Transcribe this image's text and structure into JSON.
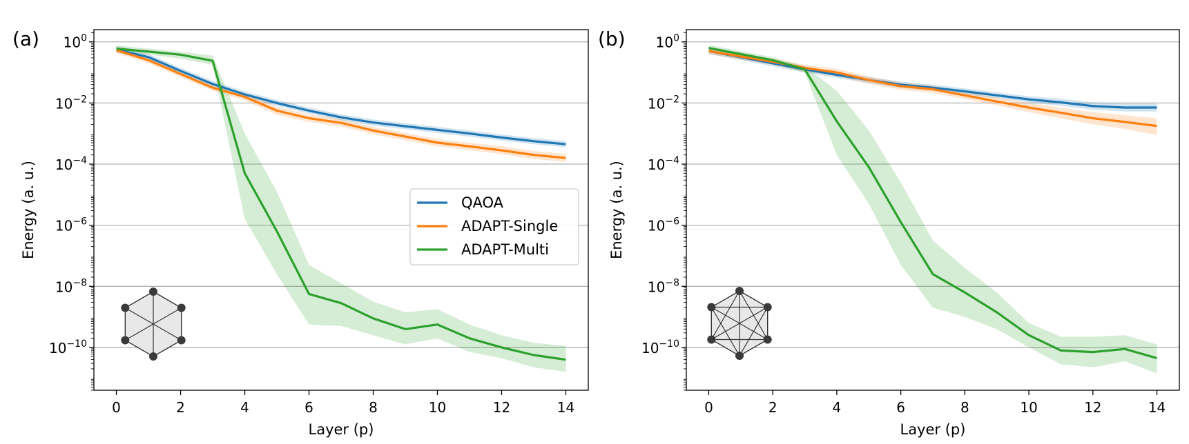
{
  "chart_data": [
    {
      "type": "line",
      "panel_label": "(a)",
      "xlabel": "Layer (p)",
      "ylabel": "Energy (a. u.)",
      "xlim": [
        -0.7,
        14.7
      ],
      "ylim_log10": [
        -11.4,
        0.4
      ],
      "xticks": [
        "0",
        "2",
        "4",
        "6",
        "8",
        "10",
        "12",
        "14"
      ],
      "yticks": [
        {
          "base": "10",
          "exp": "0"
        },
        {
          "base": "10",
          "exp": "−2"
        },
        {
          "base": "10",
          "exp": "−4"
        },
        {
          "base": "10",
          "exp": "−6"
        },
        {
          "base": "10",
          "exp": "−8"
        },
        {
          "base": "10",
          "exp": "−10"
        }
      ],
      "grid": "horizontal",
      "legend": [
        "QAOA",
        "ADAPT-Single",
        "ADAPT-Multi"
      ],
      "legend_position": "center-right",
      "inset_graph": "hexagon with long diagonals",
      "x": [
        0,
        1,
        2,
        3,
        4,
        5,
        6,
        7,
        8,
        9,
        10,
        11,
        12,
        13,
        14
      ],
      "series": [
        {
          "name": "QAOA",
          "color": "#1f77b4",
          "log10": [
            -0.25,
            -0.5,
            -0.95,
            -1.38,
            -1.72,
            -2.0,
            -2.25,
            -2.47,
            -2.64,
            -2.76,
            -2.88,
            -3.0,
            -3.13,
            -3.25,
            -3.35
          ],
          "band_low": [
            -0.35,
            -0.6,
            -1.05,
            -1.48,
            -1.82,
            -2.1,
            -2.35,
            -2.57,
            -2.74,
            -2.86,
            -2.98,
            -3.1,
            -3.23,
            -3.35,
            -3.45
          ],
          "band_high": [
            -0.15,
            -0.4,
            -0.85,
            -1.28,
            -1.62,
            -1.9,
            -2.15,
            -2.37,
            -2.54,
            -2.66,
            -2.78,
            -2.9,
            -3.03,
            -3.15,
            -3.25
          ]
        },
        {
          "name": "ADAPT-Single",
          "color": "#ff7f0e",
          "log10": [
            -0.27,
            -0.6,
            -1.05,
            -1.5,
            -1.8,
            -2.25,
            -2.5,
            -2.65,
            -2.9,
            -3.1,
            -3.3,
            -3.42,
            -3.55,
            -3.7,
            -3.8
          ],
          "band_low": [
            -0.37,
            -0.7,
            -1.15,
            -1.6,
            -1.92,
            -2.38,
            -2.62,
            -2.77,
            -3.02,
            -3.22,
            -3.42,
            -3.54,
            -3.68,
            -3.83,
            -3.93
          ],
          "band_high": [
            -0.17,
            -0.5,
            -0.95,
            -1.4,
            -1.68,
            -2.12,
            -2.38,
            -2.53,
            -2.78,
            -2.98,
            -3.18,
            -3.3,
            -3.42,
            -3.57,
            -3.67
          ]
        },
        {
          "name": "ADAPT-Multi",
          "color": "#2ca02c",
          "log10": [
            -0.22,
            -0.32,
            -0.42,
            -0.62,
            -4.3,
            -6.2,
            -8.25,
            -8.55,
            -9.05,
            -9.4,
            -9.25,
            -9.7,
            -10.0,
            -10.25,
            -10.4
          ],
          "band_low": [
            -0.32,
            -0.42,
            -0.55,
            -0.75,
            -5.8,
            -7.6,
            -9.25,
            -9.3,
            -9.6,
            -9.9,
            -9.7,
            -10.15,
            -10.35,
            -10.65,
            -10.8
          ],
          "band_high": [
            -0.12,
            -0.22,
            -0.32,
            -0.45,
            -3.0,
            -4.9,
            -7.3,
            -7.9,
            -8.5,
            -8.85,
            -8.75,
            -9.25,
            -9.6,
            -9.85,
            -9.95
          ]
        }
      ]
    },
    {
      "type": "line",
      "panel_label": "(b)",
      "xlabel": "Layer (p)",
      "ylabel": "Energy (a. u.)",
      "xlim": [
        -0.7,
        14.7
      ],
      "ylim_log10": [
        -11.4,
        0.4
      ],
      "xticks": [
        "0",
        "2",
        "4",
        "6",
        "8",
        "10",
        "12",
        "14"
      ],
      "yticks": [
        {
          "base": "10",
          "exp": "0"
        },
        {
          "base": "10",
          "exp": "−2"
        },
        {
          "base": "10",
          "exp": "−4"
        },
        {
          "base": "10",
          "exp": "−6"
        },
        {
          "base": "10",
          "exp": "−8"
        },
        {
          "base": "10",
          "exp": "−10"
        }
      ],
      "grid": "horizontal",
      "inset_graph": "complete graph on six vertices",
      "x": [
        0,
        1,
        2,
        3,
        4,
        5,
        6,
        7,
        8,
        9,
        10,
        11,
        12,
        13,
        14
      ],
      "series": [
        {
          "name": "QAOA",
          "color": "#1f77b4",
          "log10": [
            -0.3,
            -0.5,
            -0.7,
            -0.9,
            -1.08,
            -1.25,
            -1.4,
            -1.5,
            -1.62,
            -1.75,
            -1.88,
            -1.98,
            -2.1,
            -2.15,
            -2.15
          ],
          "band_low": [
            -0.4,
            -0.6,
            -0.8,
            -1.0,
            -1.18,
            -1.35,
            -1.5,
            -1.6,
            -1.72,
            -1.85,
            -1.98,
            -2.1,
            -2.22,
            -2.28,
            -2.28
          ],
          "band_high": [
            -0.2,
            -0.4,
            -0.6,
            -0.8,
            -0.98,
            -1.15,
            -1.3,
            -1.4,
            -1.52,
            -1.65,
            -1.78,
            -1.86,
            -1.98,
            -2.02,
            -2.02
          ]
        },
        {
          "name": "ADAPT-Single",
          "color": "#ff7f0e",
          "log10": [
            -0.3,
            -0.48,
            -0.65,
            -0.85,
            -1.0,
            -1.25,
            -1.45,
            -1.55,
            -1.75,
            -1.95,
            -2.15,
            -2.32,
            -2.5,
            -2.62,
            -2.75
          ],
          "band_low": [
            -0.4,
            -0.58,
            -0.75,
            -0.97,
            -1.12,
            -1.37,
            -1.57,
            -1.67,
            -1.87,
            -2.07,
            -2.3,
            -2.5,
            -2.7,
            -2.85,
            -3.05
          ],
          "band_high": [
            -0.2,
            -0.38,
            -0.55,
            -0.75,
            -0.88,
            -1.13,
            -1.33,
            -1.43,
            -1.63,
            -1.83,
            -2.0,
            -2.15,
            -2.3,
            -2.4,
            -2.5
          ]
        },
        {
          "name": "ADAPT-Multi",
          "color": "#2ca02c",
          "log10": [
            -0.2,
            -0.4,
            -0.6,
            -0.9,
            -2.6,
            -4.1,
            -5.9,
            -7.6,
            -8.2,
            -8.85,
            -9.6,
            -10.1,
            -10.15,
            -10.05,
            -10.35
          ],
          "band_low": [
            -0.3,
            -0.5,
            -0.7,
            -1.0,
            -3.7,
            -5.3,
            -7.3,
            -8.7,
            -9.0,
            -9.4,
            -10.0,
            -10.55,
            -10.65,
            -10.45,
            -10.85
          ],
          "band_high": [
            -0.1,
            -0.3,
            -0.5,
            -0.8,
            -1.6,
            -2.9,
            -4.6,
            -6.5,
            -7.4,
            -8.2,
            -9.2,
            -9.65,
            -9.65,
            -9.6,
            -9.9
          ]
        }
      ]
    }
  ]
}
